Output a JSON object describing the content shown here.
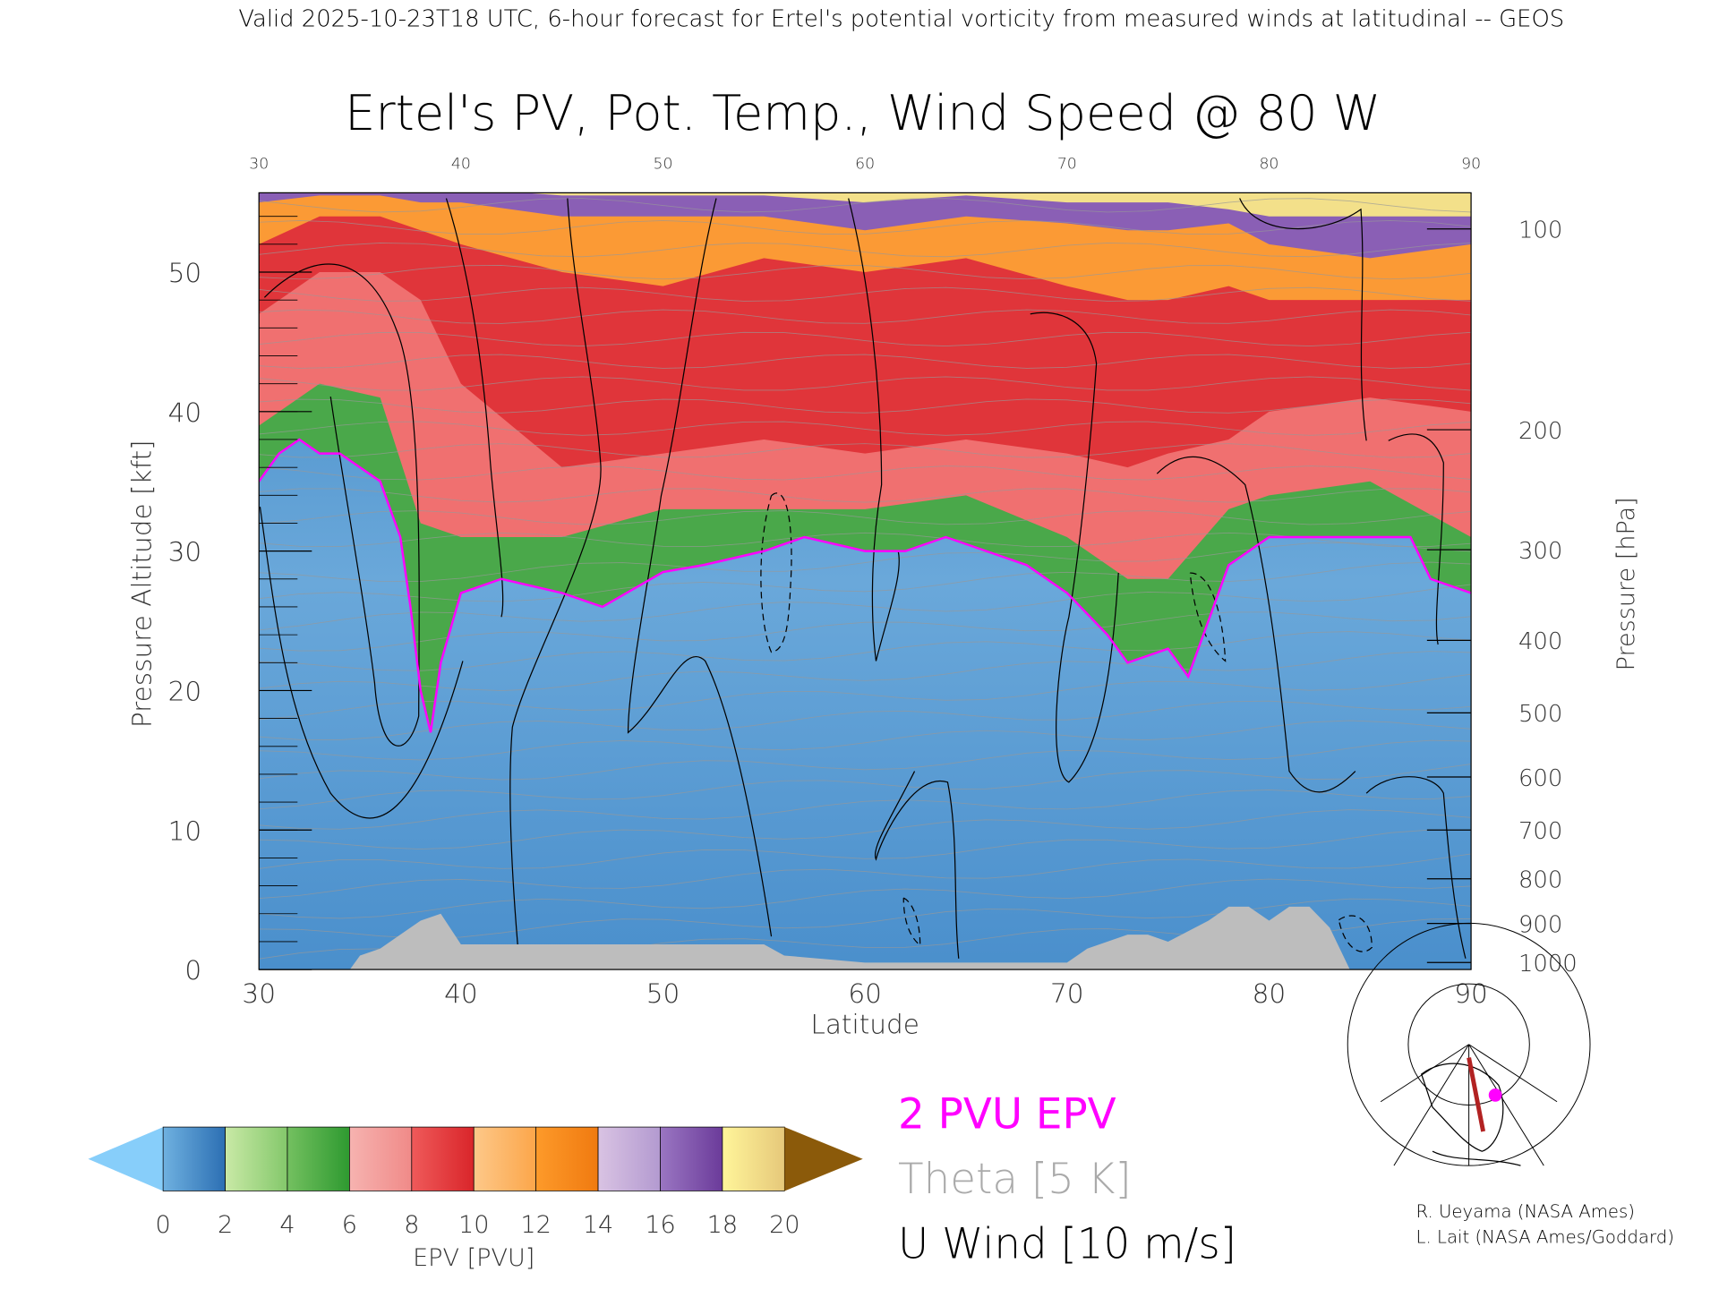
{
  "header": {
    "caption": "Valid 2025-10-23T18 UTC, 6-hour forecast for Ertel's potential vorticity from measured winds at latitudinal -- GEOS",
    "title": "Ertel's PV, Pot. Temp., Wind Speed @ 80 W"
  },
  "chart_data": {
    "type": "heatmap",
    "title": "Ertel's PV, Pot. Temp., Wind Speed @ 80 W",
    "xlabel": "Latitude",
    "ylabel": "Pressure Altitude [kft]",
    "y2label": "Pressure [hPa]",
    "xlim": [
      30,
      90
    ],
    "ylim": [
      0,
      55.7
    ],
    "x_ticks": [
      "30",
      "40",
      "50",
      "60",
      "70",
      "80",
      "90"
    ],
    "x_ticks_values": [
      30,
      40,
      50,
      60,
      70,
      80,
      90
    ],
    "y_ticks": [
      "0",
      "10",
      "20",
      "30",
      "40",
      "50"
    ],
    "y_ticks_values": [
      0,
      10,
      20,
      30,
      40,
      50
    ],
    "y2_ticks": [
      {
        "label": "100",
        "kft": 53.1
      },
      {
        "label": "200",
        "kft": 38.7
      },
      {
        "label": "300",
        "kft": 30.1
      },
      {
        "label": "400",
        "kft": 23.6
      },
      {
        "label": "500",
        "kft": 18.4
      },
      {
        "label": "600",
        "kft": 13.8
      },
      {
        "label": "700",
        "kft": 10.0
      },
      {
        "label": "800",
        "kft": 6.5
      },
      {
        "label": "900",
        "kft": 3.3
      },
      {
        "label": "1000",
        "kft": 0.5
      }
    ],
    "pv_2pvu_kft": {
      "lat": [
        30,
        31,
        32,
        33,
        34,
        35,
        36,
        37,
        37.5,
        38,
        38.5,
        39,
        40,
        42,
        45,
        47,
        50,
        52,
        55,
        57,
        60,
        62,
        64,
        66,
        68,
        70,
        72,
        73,
        75,
        76,
        78,
        80,
        82,
        85,
        87,
        88,
        90
      ],
      "value": [
        35,
        37,
        38,
        37,
        37,
        36,
        35,
        31,
        26,
        20,
        17,
        22,
        27,
        28,
        27,
        26,
        28.5,
        29,
        30,
        31,
        30,
        30,
        31,
        30,
        29,
        27,
        24,
        22,
        23,
        21,
        29,
        31,
        31,
        31,
        31,
        28,
        27
      ]
    },
    "pv_levels_kft": {
      "lat": [
        30,
        33,
        36,
        38,
        40,
        45,
        50,
        55,
        60,
        65,
        70,
        73,
        75,
        78,
        80,
        85,
        90
      ],
      "pvu4": [
        39,
        42,
        41,
        32,
        31,
        31,
        33,
        33,
        33,
        34,
        31,
        28,
        28,
        33,
        34,
        35,
        31
      ],
      "pvu8": [
        47,
        50,
        50,
        48,
        42,
        36,
        37,
        38,
        37,
        38,
        37,
        36,
        37,
        38,
        40,
        41,
        40
      ],
      "pvu12": [
        52,
        54,
        54,
        53,
        52,
        50,
        49,
        51,
        50,
        51,
        49,
        48,
        48,
        49,
        48,
        48,
        48
      ],
      "pvu16": [
        55,
        55.5,
        55.5,
        55,
        55,
        54,
        54,
        54,
        53,
        54,
        53.5,
        53,
        53,
        53.5,
        52,
        51,
        52
      ],
      "pvu18": [
        56,
        56,
        56,
        56,
        56,
        55.5,
        55.5,
        55.5,
        55,
        55.5,
        55,
        55,
        55,
        54.5,
        54,
        54,
        54
      ]
    },
    "terrain_kft": {
      "lat": [
        30,
        34.5,
        35,
        36,
        37,
        38,
        39,
        40,
        55,
        56,
        60,
        70,
        71,
        73,
        74,
        75,
        77,
        78,
        79,
        80,
        81,
        82,
        83,
        84,
        90
      ],
      "value": [
        0,
        0,
        1,
        1.5,
        2.5,
        3.5,
        4,
        1.8,
        1.8,
        1,
        0.5,
        0.5,
        1.5,
        2.5,
        2.5,
        2,
        3.5,
        4.5,
        4.5,
        3.5,
        4.5,
        4.5,
        3,
        0,
        0
      ]
    },
    "colorbar": {
      "label": "EPV [PVU]",
      "tick_labels": [
        "0",
        "2",
        "4",
        "6",
        "8",
        "10",
        "12",
        "14",
        "16",
        "18",
        "20"
      ],
      "under_color": "#87cefa",
      "over_color": "#8b5a0a",
      "segments": [
        [
          "#6fb1e0",
          "#2c6fb3"
        ],
        [
          "#c9e9a6",
          "#84c86b"
        ],
        [
          "#74c060",
          "#2e9a30"
        ],
        [
          "#f6b3b0",
          "#f08a88"
        ],
        [
          "#ef5a5a",
          "#d9252a"
        ],
        [
          "#fdc889",
          "#fca64a"
        ],
        [
          "#fd9a2a",
          "#f07a10"
        ],
        [
          "#d9c3e3",
          "#b39ad0"
        ],
        [
          "#9a76c2",
          "#6b3b9a"
        ],
        [
          "#fff59a",
          "#e6c87a"
        ]
      ]
    },
    "legend": [
      {
        "label": "2 PVU EPV",
        "color": "#ff00ff"
      },
      {
        "label": "Theta [5 K]",
        "color": "#aaaaaa"
      },
      {
        "label": "U Wind [10 m/s]",
        "color": "#000000"
      }
    ]
  },
  "credits": [
    "R. Ueyama (NASA Ames)",
    "L. Lait (NASA Ames/Goddard)"
  ],
  "colors": {
    "pv2": "#ff00ff",
    "theta": "#999999",
    "terrain": "#bdbdbd",
    "map_line": "#b22222"
  }
}
